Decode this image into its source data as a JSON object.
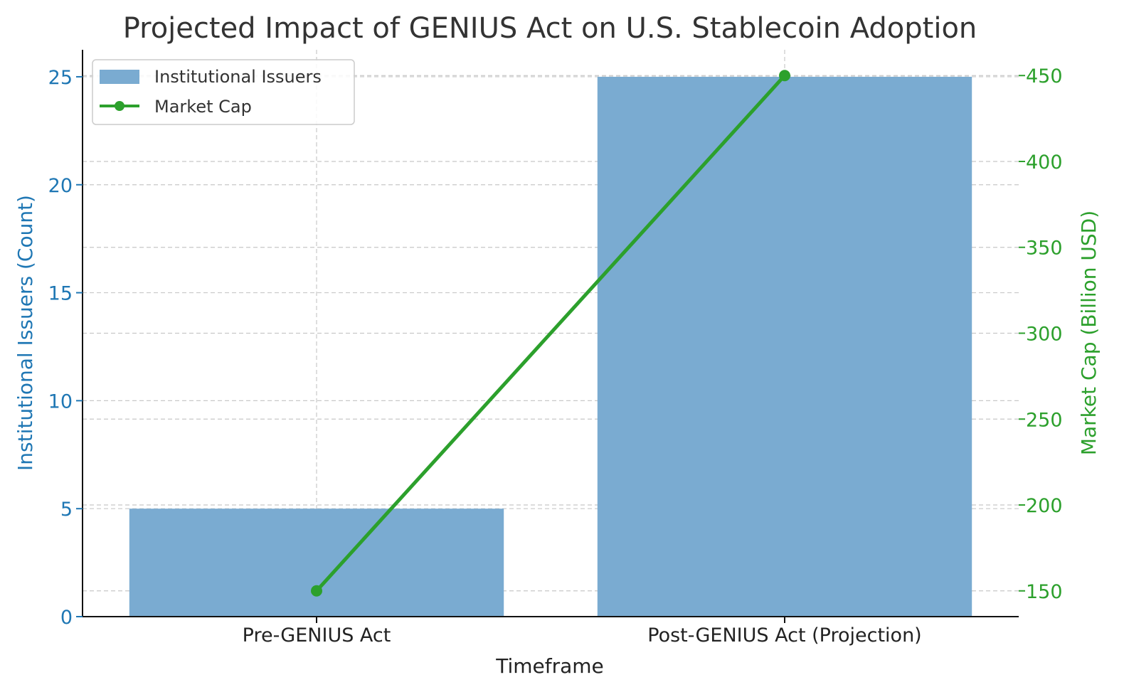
{
  "chart_data": {
    "type": "bar",
    "title": "Projected Impact of GENIUS Act on U.S. Stablecoin Adoption",
    "xlabel": "Timeframe",
    "categories": [
      "Pre-GENIUS Act",
      "Post-GENIUS Act (Projection)"
    ],
    "series": [
      {
        "name": "Institutional Issuers",
        "type": "bar",
        "axis": "left",
        "values": [
          5,
          25
        ],
        "color": "#7aabd1"
      },
      {
        "name": "Market Cap",
        "type": "line",
        "axis": "right",
        "values": [
          150,
          450
        ],
        "color": "#2ca02c"
      }
    ],
    "y_left": {
      "label": "Institutional Issuers (Count)",
      "ticks": [
        0,
        5,
        10,
        15,
        20,
        25
      ],
      "ylim": [
        0,
        26.25
      ],
      "color": "#1f77b4"
    },
    "y_right": {
      "label": "Market Cap (Billion USD)",
      "ticks": [
        150,
        200,
        250,
        300,
        350,
        400,
        450
      ],
      "ylim": [
        135,
        465
      ],
      "color": "#2ca02c"
    },
    "grid": true,
    "legend_position": "top-left"
  }
}
